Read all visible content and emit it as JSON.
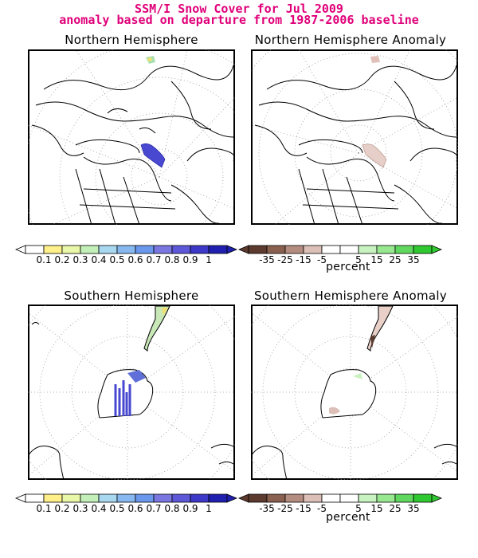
{
  "header": {
    "title_line1": "SSM/I Snow Cover for Jul 2009",
    "title_line2": "anomaly based on departure from 1987-2006 baseline",
    "title_color": "#e0007a"
  },
  "panels": {
    "nh": {
      "title": "Northern Hemisphere"
    },
    "nh_anom": {
      "title": "Northern Hemisphere Anomaly"
    },
    "sh": {
      "title": "Southern Hemisphere"
    },
    "sh_anom": {
      "title": "Southern Hemisphere Anomaly"
    }
  },
  "colorbar_unit": "percent",
  "chart_data": [
    {
      "type": "heatmap",
      "title": "Northern Hemisphere",
      "variable": "snow cover fraction",
      "legend_labels": [
        "0.1",
        "0.2",
        "0.3",
        "0.4",
        "0.5",
        "0.6",
        "0.7",
        "0.8",
        "0.9",
        "1"
      ],
      "colors": [
        "#ffffff",
        "#fff08a",
        "#e8f7a8",
        "#c2f0b8",
        "#a8d8f0",
        "#88b8f0",
        "#6a98ec",
        "#7a78e0",
        "#5c58d8",
        "#3c38c8",
        "#2020b0"
      ]
    },
    {
      "type": "heatmap",
      "title": "Northern Hemisphere Anomaly",
      "variable": "snow cover anomaly",
      "unit": "percent",
      "legend_labels": [
        "-35",
        "-25",
        "-15",
        "-5",
        "5",
        "15",
        "25",
        "35"
      ],
      "colors": [
        "#5c3a2e",
        "#8a6050",
        "#b48c80",
        "#dcc0b8",
        "#ffffff",
        "#ffffff",
        "#c8f2c0",
        "#98e890",
        "#60d860",
        "#30c830"
      ]
    },
    {
      "type": "heatmap",
      "title": "Southern Hemisphere",
      "variable": "snow cover fraction",
      "legend_labels": [
        "0.1",
        "0.2",
        "0.3",
        "0.4",
        "0.5",
        "0.6",
        "0.7",
        "0.8",
        "0.9",
        "1"
      ],
      "colors": [
        "#ffffff",
        "#fff08a",
        "#e8f7a8",
        "#c2f0b8",
        "#a8d8f0",
        "#88b8f0",
        "#6a98ec",
        "#7a78e0",
        "#5c58d8",
        "#3c38c8",
        "#2020b0"
      ]
    },
    {
      "type": "heatmap",
      "title": "Southern Hemisphere Anomaly",
      "variable": "snow cover anomaly",
      "unit": "percent",
      "legend_labels": [
        "-35",
        "-25",
        "-15",
        "-5",
        "5",
        "15",
        "25",
        "35"
      ],
      "colors": [
        "#5c3a2e",
        "#8a6050",
        "#b48c80",
        "#dcc0b8",
        "#ffffff",
        "#ffffff",
        "#c8f2c0",
        "#98e890",
        "#60d860",
        "#30c830"
      ]
    }
  ]
}
